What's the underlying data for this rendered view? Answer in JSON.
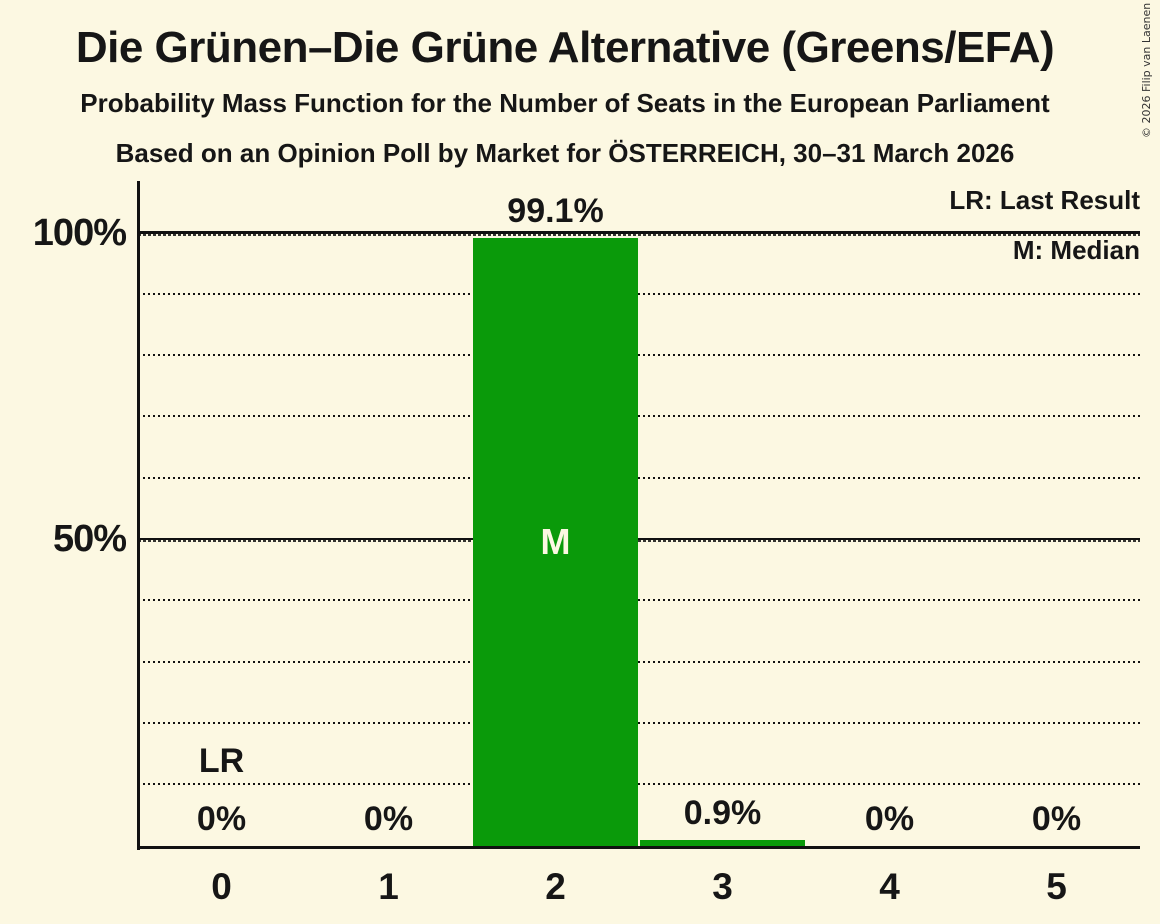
{
  "title": "Die Grünen–Die Grüne Alternative (Greens/EFA)",
  "subtitles": [
    "Probability Mass Function for the Number of Seats in the European Parliament",
    "Based on an Opinion Poll by Market for ÖSTERREICH, 30–31 March 2026"
  ],
  "copyright": "© 2026 Filip van Laenen",
  "legend": {
    "lr": "LR: Last Result",
    "m": "M: Median"
  },
  "y_axis": {
    "labels": [
      {
        "text": "100%",
        "value": 100
      },
      {
        "text": "50%",
        "value": 50
      }
    ]
  },
  "chart_data": {
    "type": "bar",
    "title": "Probability Mass Function for the Number of Seats in the European Parliament",
    "categories": [
      "0",
      "1",
      "2",
      "3",
      "4",
      "5"
    ],
    "values": [
      0,
      0,
      99.1,
      0.9,
      0,
      0
    ],
    "value_labels": [
      "0%",
      "0%",
      "99.1%",
      "0.9%",
      "0%",
      "0%"
    ],
    "xlabel": "",
    "ylabel": "",
    "ylim": [
      0,
      100
    ],
    "grid": {
      "minor_step": 10,
      "minor_style": "dotted",
      "major_lines": [
        50,
        100
      ],
      "major_style": "solid"
    },
    "median_category": "2",
    "median_marker": "M",
    "last_result_category": "0",
    "last_result_marker": "LR",
    "legend_position": "top-right"
  },
  "colors": {
    "background": "#FCF8E2",
    "bar": "#0A9A0A",
    "text": "#161616",
    "line": "#111111"
  }
}
